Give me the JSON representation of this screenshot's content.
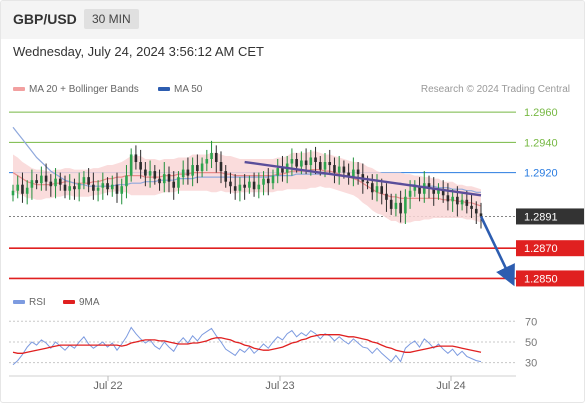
{
  "header": {
    "pair": "GBP/USD",
    "timeframe": "30 MIN",
    "timestamp": "Wednesday, July 24, 2024 3:56:12 AM CET"
  },
  "legend_main": [
    {
      "label": "MA 20 + Bollinger Bands",
      "color": "#f2a0a0"
    },
    {
      "label": "MA 50",
      "color": "#2d5db0"
    }
  ],
  "credit": "Research © 2024 Trading Central",
  "legend_rsi": [
    {
      "label": "RSI",
      "color": "#7d9be0"
    },
    {
      "label": "9MA",
      "color": "#e02020"
    }
  ],
  "chart_data": [
    {
      "type": "candlestick",
      "instrument": "GBP/USD",
      "ylim": [
        1.2845,
        1.297
      ],
      "x_ticks": [
        "Jul 22",
        "Jul 23",
        "Jul 24"
      ],
      "price_levels": [
        {
          "value": 1.296,
          "label": "1.2960",
          "color": "#76b843",
          "kind": "target"
        },
        {
          "value": 1.294,
          "label": "1.2940",
          "color": "#76b843",
          "kind": "target"
        },
        {
          "value": 1.292,
          "label": "1.2920",
          "color": "#2a7ce0",
          "kind": "pivot"
        },
        {
          "value": 1.2891,
          "label": "1.2891",
          "color": "#333333",
          "kind": "last"
        },
        {
          "value": 1.287,
          "label": "1.2870",
          "color": "#e02020",
          "kind": "support"
        },
        {
          "value": 1.285,
          "label": "1.2850",
          "color": "#e02020",
          "kind": "support"
        }
      ],
      "close_series": [
        1.2908,
        1.2912,
        1.2906,
        1.291,
        1.2915,
        1.2913,
        1.2918,
        1.2914,
        1.2911,
        1.2916,
        1.2912,
        1.2908,
        1.2911,
        1.2909,
        1.2913,
        1.2917,
        1.2912,
        1.2908,
        1.291,
        1.2913,
        1.2909,
        1.2912,
        1.2906,
        1.2911,
        1.2918,
        1.2932,
        1.2927,
        1.2922,
        1.2918,
        1.2921,
        1.2916,
        1.2913,
        1.2919,
        1.2914,
        1.291,
        1.2917,
        1.2922,
        1.2918,
        1.2925,
        1.2921,
        1.2926,
        1.2929,
        1.2933,
        1.2927,
        1.2921,
        1.2914,
        1.2911,
        1.2908,
        1.2912,
        1.291,
        1.2914,
        1.2909,
        1.2912,
        1.2916,
        1.2913,
        1.2918,
        1.2923,
        1.292,
        1.2926,
        1.2929,
        1.2924,
        1.2928,
        1.2925,
        1.293,
        1.2927,
        1.2922,
        1.2927,
        1.2925,
        1.292,
        1.2924,
        1.292,
        1.2917,
        1.2922,
        1.2919,
        1.2914,
        1.2913,
        1.2907,
        1.2911,
        1.2906,
        1.2902,
        1.2896,
        1.29,
        1.2893,
        1.2904,
        1.2908,
        1.2911,
        1.2906,
        1.2913,
        1.291,
        1.2906,
        1.2909,
        1.2905,
        1.2901,
        1.2904,
        1.2899,
        1.2902,
        1.2898,
        1.2896,
        1.2893,
        1.2891
      ],
      "ma20": [
        1.292,
        1.2918,
        1.2916,
        1.2914,
        1.2913,
        1.2912,
        1.2912,
        1.2912,
        1.2912,
        1.2913,
        1.2913,
        1.2914,
        1.2914,
        1.2913,
        1.2913,
        1.2913,
        1.2913,
        1.2914,
        1.2914,
        1.2915,
        1.2916,
        1.2916,
        1.2917,
        1.2917,
        1.2918,
        1.2918,
        1.2918,
        1.2918,
        1.2917,
        1.2917,
        1.2917,
        1.2917,
        1.2918,
        1.2918,
        1.2918,
        1.2919,
        1.2919,
        1.2919,
        1.292,
        1.292,
        1.292,
        1.292,
        1.292,
        1.292,
        1.292,
        1.2919,
        1.2919,
        1.2918,
        1.2918,
        1.2918,
        1.2918,
        1.2918,
        1.2918,
        1.2918,
        1.2918,
        1.2918,
        1.2919,
        1.2919,
        1.292,
        1.2921,
        1.2921,
        1.2921,
        1.2921,
        1.2922,
        1.2922,
        1.2922,
        1.2921,
        1.2921,
        1.292,
        1.2919,
        1.2918,
        1.2917,
        1.2916,
        1.2915,
        1.2913,
        1.2911,
        1.2909,
        1.2907,
        1.2906,
        1.2905,
        1.2904,
        1.2904,
        1.2903,
        1.2903,
        1.2903,
        1.2903,
        1.2903,
        1.2903,
        1.2903,
        1.2903,
        1.2903,
        1.2902,
        1.2902,
        1.2902,
        1.2901,
        1.2901,
        1.29,
        1.29,
        1.2899,
        1.2898
      ],
      "bollinger_width": [
        0.0012,
        0.0012,
        0.0011,
        0.0011,
        0.001,
        0.001,
        0.001,
        0.0009,
        0.0009,
        0.0009,
        0.0009,
        0.0009,
        0.0009,
        0.0009,
        0.0009,
        0.0009,
        0.0009,
        0.0009,
        0.0009,
        0.0009,
        0.0009,
        0.0009,
        0.0009,
        0.001,
        0.0011,
        0.0013,
        0.0013,
        0.0013,
        0.0012,
        0.0012,
        0.0012,
        0.0011,
        0.0011,
        0.0011,
        0.0011,
        0.0011,
        0.0011,
        0.0011,
        0.0012,
        0.0012,
        0.0012,
        0.0012,
        0.0013,
        0.0013,
        0.0012,
        0.0012,
        0.0012,
        0.0012,
        0.0011,
        0.0011,
        0.0011,
        0.0011,
        0.0011,
        0.0011,
        0.0011,
        0.0011,
        0.0011,
        0.0011,
        0.0011,
        0.0012,
        0.0012,
        0.0012,
        0.0012,
        0.0012,
        0.0012,
        0.0011,
        0.0011,
        0.0011,
        0.0011,
        0.0011,
        0.0011,
        0.0011,
        0.0011,
        0.0012,
        0.0013,
        0.0013,
        0.0014,
        0.0014,
        0.0014,
        0.0015,
        0.0016,
        0.0016,
        0.0017,
        0.0016,
        0.0016,
        0.0015,
        0.0015,
        0.0014,
        0.0014,
        0.0013,
        0.0013,
        0.0012,
        0.0012,
        0.0012,
        0.0011,
        0.0011,
        0.0011,
        0.0011,
        0.0011,
        0.0011
      ],
      "ma50": [
        1.295,
        1.2946,
        1.2942,
        1.2938,
        1.2934,
        1.293,
        1.2927,
        1.2924,
        1.2921,
        1.2919,
        1.2917,
        1.2915,
        1.2914,
        1.2913,
        1.2912,
        1.2912,
        1.2911,
        1.2911,
        1.2911,
        1.2911,
        1.2911,
        1.2911,
        1.2912,
        1.2912,
        1.2912,
        1.2913,
        1.2913,
        1.2913,
        1.2914,
        1.2914,
        1.2914,
        1.2915,
        1.2915,
        1.2915,
        1.2915,
        1.2916,
        1.2916,
        1.2916,
        1.2916,
        1.2917,
        1.2917,
        1.2917,
        1.2917,
        1.2917,
        1.2917,
        1.2917,
        1.2917,
        1.2917,
        1.2917,
        1.2917,
        1.2917,
        1.2917,
        1.2917,
        1.2917,
        1.2917,
        1.2918,
        1.2918,
        1.2918,
        1.2918,
        1.2918,
        1.2919,
        1.2919,
        1.2919,
        1.2919,
        1.2919,
        1.2919,
        1.2919,
        1.2919,
        1.2919,
        1.2918,
        1.2918,
        1.2918,
        1.2917,
        1.2917,
        1.2916,
        1.2916,
        1.2915,
        1.2915,
        1.2914,
        1.2914,
        1.2913,
        1.2913,
        1.2913,
        1.2912,
        1.2912,
        1.2912,
        1.2911,
        1.2911,
        1.2911,
        1.2911,
        1.291,
        1.291,
        1.291,
        1.2909,
        1.2909,
        1.2909,
        1.2908,
        1.2908,
        1.2907,
        1.2907
      ],
      "trend_line": {
        "from_index": 49,
        "from_value": 1.2927,
        "to_index": 99,
        "to_value": 1.2905
      },
      "forecast_arrow": {
        "from_value": 1.2891,
        "to_value": 1.2851
      }
    },
    {
      "type": "line",
      "name": "RSI",
      "ylim": [
        20,
        78
      ],
      "y_ticks": [
        70,
        50,
        30
      ],
      "guide_levels": [
        70,
        50,
        30
      ],
      "series": [
        {
          "name": "RSI",
          "color": "#7d9be0",
          "values": [
            28,
            32,
            38,
            45,
            50,
            47,
            52,
            49,
            44,
            50,
            46,
            42,
            47,
            44,
            50,
            55,
            48,
            44,
            47,
            50,
            45,
            49,
            42,
            48,
            55,
            64,
            58,
            53,
            49,
            52,
            46,
            43,
            50,
            45,
            41,
            49,
            54,
            49,
            56,
            51,
            57,
            60,
            63,
            56,
            50,
            43,
            40,
            37,
            43,
            40,
            45,
            39,
            43,
            48,
            44,
            50,
            55,
            52,
            58,
            61,
            55,
            59,
            56,
            61,
            58,
            53,
            58,
            56,
            51,
            55,
            51,
            48,
            53,
            49,
            45,
            44,
            39,
            44,
            39,
            35,
            31,
            37,
            31,
            44,
            48,
            51,
            45,
            53,
            49,
            44,
            48,
            43,
            39,
            43,
            37,
            41,
            36,
            34,
            32,
            31
          ]
        },
        {
          "name": "9MA",
          "color": "#e02020",
          "values": [
            40,
            39,
            39,
            40,
            41,
            42,
            43,
            44,
            45,
            46,
            47,
            47,
            47,
            47,
            47,
            47,
            47,
            47,
            47,
            47,
            47,
            47,
            47,
            46,
            47,
            49,
            50,
            51,
            52,
            52,
            52,
            51,
            51,
            50,
            49,
            48,
            48,
            48,
            49,
            49,
            50,
            51,
            53,
            54,
            54,
            53,
            52,
            50,
            49,
            47,
            46,
            44,
            43,
            42,
            42,
            43,
            44,
            45,
            47,
            49,
            50,
            52,
            53,
            55,
            56,
            57,
            57,
            57,
            57,
            57,
            56,
            55,
            55,
            54,
            53,
            52,
            50,
            49,
            47,
            45,
            44,
            42,
            41,
            40,
            40,
            41,
            42,
            43,
            44,
            45,
            46,
            46,
            46,
            46,
            45,
            44,
            43,
            42,
            41,
            40
          ]
        }
      ]
    }
  ]
}
